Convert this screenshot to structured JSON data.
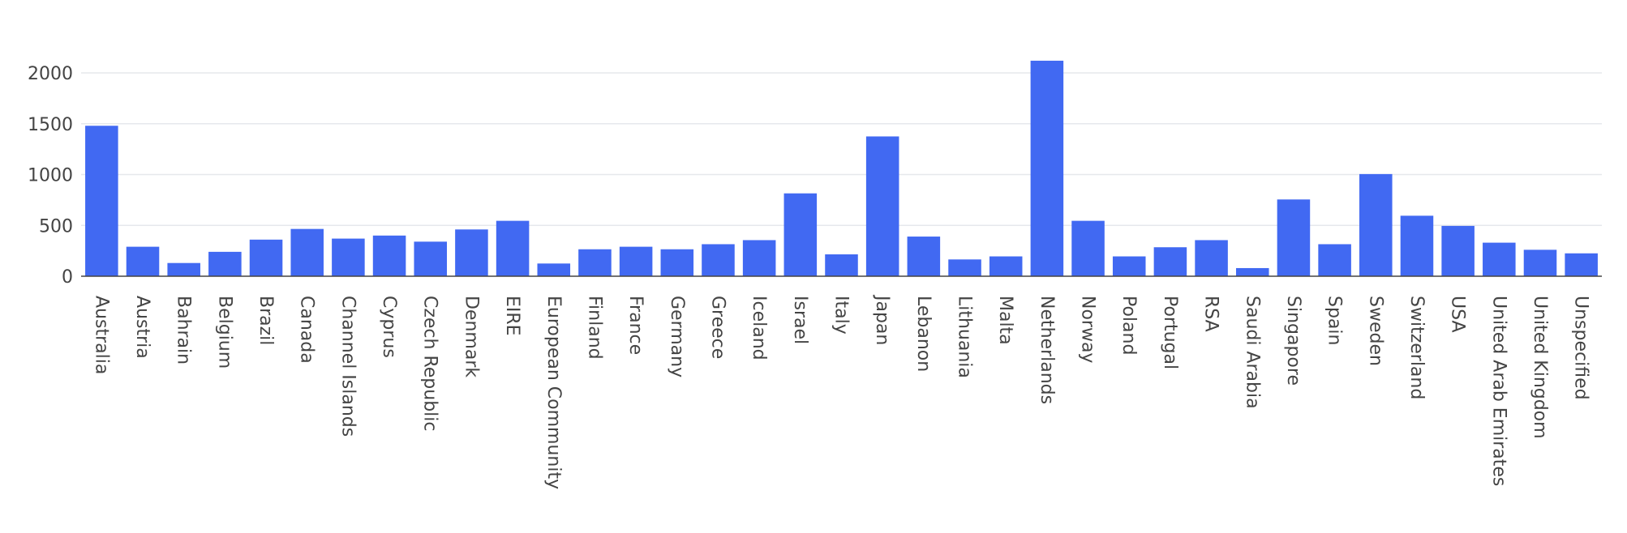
{
  "chart_data": {
    "type": "bar",
    "title": "",
    "xlabel": "",
    "ylabel": "",
    "ylim": [
      0,
      2200
    ],
    "yticks": [
      0,
      500,
      1000,
      1500,
      2000
    ],
    "grid": true,
    "bar_color": "#4169f2",
    "categories": [
      "Australia",
      "Austria",
      "Bahrain",
      "Belgium",
      "Brazil",
      "Canada",
      "Channel Islands",
      "Cyprus",
      "Czech Republic",
      "Denmark",
      "EIRE",
      "European Community",
      "Finland",
      "France",
      "Germany",
      "Greece",
      "Iceland",
      "Israel",
      "Italy",
      "Japan",
      "Lebanon",
      "Lithuania",
      "Malta",
      "Netherlands",
      "Norway",
      "Poland",
      "Portugal",
      "RSA",
      "Saudi Arabia",
      "Singapore",
      "Spain",
      "Sweden",
      "Switzerland",
      "USA",
      "United Arab Emirates",
      "United Kingdom",
      "Unspecified"
    ],
    "values": [
      1480,
      290,
      130,
      240,
      360,
      465,
      370,
      400,
      340,
      460,
      545,
      125,
      265,
      290,
      265,
      315,
      355,
      815,
      215,
      1375,
      390,
      165,
      195,
      2120,
      545,
      195,
      285,
      355,
      80,
      755,
      315,
      1005,
      595,
      495,
      330,
      260,
      225
    ]
  }
}
